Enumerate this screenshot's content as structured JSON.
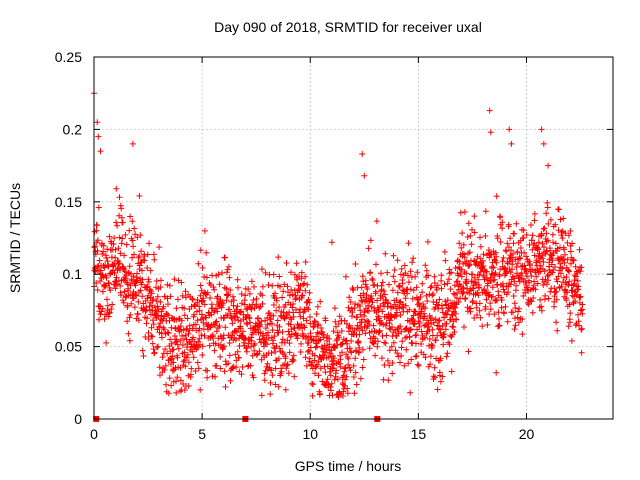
{
  "chart_data": {
    "type": "scatter",
    "title": "Day 090 of 2018, SRMTID for receiver uxal",
    "xlabel": "GPS time / hours",
    "ylabel": "SRMTID / TECUs",
    "xlim": [
      0,
      24
    ],
    "ylim": [
      0,
      0.25
    ],
    "xticks": [
      0,
      5,
      10,
      15,
      20
    ],
    "xtick_labels": [
      "0",
      "5",
      "10",
      "15",
      "20"
    ],
    "yticks": [
      0,
      0.05,
      0.1,
      0.15,
      0.2,
      0.25
    ],
    "ytick_labels": [
      "0",
      "0.05",
      "0.1",
      "0.15",
      "0.2",
      "0.25"
    ],
    "grid": true,
    "marker": "+",
    "color": "#ff0000",
    "zero_markers": [
      0.1,
      7.0,
      13.1
    ],
    "trend": [
      [
        0.0,
        0.12
      ],
      [
        0.3,
        0.09
      ],
      [
        0.8,
        0.1
      ],
      [
        1.2,
        0.115
      ],
      [
        1.6,
        0.09
      ],
      [
        2.0,
        0.1
      ],
      [
        2.5,
        0.085
      ],
      [
        3.0,
        0.065
      ],
      [
        3.5,
        0.052
      ],
      [
        4.0,
        0.048
      ],
      [
        4.5,
        0.055
      ],
      [
        5.0,
        0.075
      ],
      [
        5.5,
        0.07
      ],
      [
        6.0,
        0.065
      ],
      [
        6.5,
        0.065
      ],
      [
        7.0,
        0.062
      ],
      [
        7.5,
        0.058
      ],
      [
        8.0,
        0.055
      ],
      [
        8.5,
        0.06
      ],
      [
        9.0,
        0.062
      ],
      [
        9.5,
        0.075
      ],
      [
        10.0,
        0.055
      ],
      [
        10.5,
        0.045
      ],
      [
        11.0,
        0.042
      ],
      [
        11.5,
        0.045
      ],
      [
        12.0,
        0.06
      ],
      [
        12.5,
        0.08
      ],
      [
        13.0,
        0.082
      ],
      [
        13.5,
        0.07
      ],
      [
        14.0,
        0.068
      ],
      [
        14.5,
        0.07
      ],
      [
        15.0,
        0.072
      ],
      [
        15.5,
        0.07
      ],
      [
        16.0,
        0.065
      ],
      [
        16.5,
        0.07
      ],
      [
        17.0,
        0.1
      ],
      [
        17.5,
        0.095
      ],
      [
        18.0,
        0.095
      ],
      [
        18.5,
        0.1
      ],
      [
        19.0,
        0.105
      ],
      [
        19.5,
        0.1
      ],
      [
        20.0,
        0.1
      ],
      [
        20.5,
        0.11
      ],
      [
        21.0,
        0.115
      ],
      [
        21.5,
        0.105
      ],
      [
        22.0,
        0.1
      ],
      [
        22.5,
        0.08
      ]
    ],
    "spread": 0.025,
    "points_per_hour": 100,
    "x_end": 22.6,
    "notable_points": [
      [
        0.0,
        0.225
      ],
      [
        0.15,
        0.205
      ],
      [
        0.2,
        0.195
      ],
      [
        0.3,
        0.185
      ],
      [
        1.8,
        0.19
      ],
      [
        12.4,
        0.183
      ],
      [
        12.5,
        0.168
      ],
      [
        18.3,
        0.213
      ],
      [
        18.35,
        0.198
      ],
      [
        19.2,
        0.2
      ],
      [
        19.3,
        0.19
      ],
      [
        20.7,
        0.2
      ],
      [
        20.8,
        0.19
      ],
      [
        21.0,
        0.175
      ],
      [
        11.0,
        0.122
      ],
      [
        4.2,
        0.02
      ],
      [
        3.8,
        0.018
      ],
      [
        11.3,
        0.015
      ],
      [
        18.6,
        0.032
      ],
      [
        16.0,
        0.03
      ]
    ]
  }
}
